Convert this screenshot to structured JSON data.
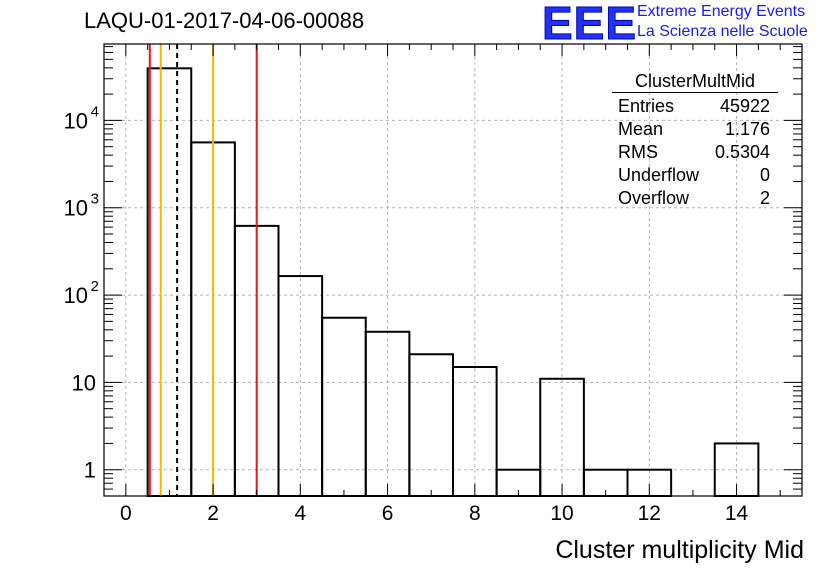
{
  "header": {
    "title": "LAQU-01-2017-04-06-00088",
    "logo_text": "EEE",
    "logo_line1": "Extreme Energy Events",
    "logo_line2": "La Scienza nelle Scuole"
  },
  "stats_box": {
    "name": "ClusterMultMid",
    "rows": [
      {
        "label": "Entries",
        "value": "45922"
      },
      {
        "label": "Mean",
        "value": "1.176"
      },
      {
        "label": "RMS",
        "value": "0.5304"
      },
      {
        "label": "Underflow",
        "value": "0"
      },
      {
        "label": "Overflow",
        "value": "2"
      }
    ]
  },
  "colors": {
    "red_line": "#e8141a",
    "orange_line": "#f5b800",
    "grid": "#b4b4b4",
    "histogram": "#000000",
    "logo": "#2233ee"
  },
  "chart_data": {
    "type": "histogram",
    "title": "LAQU-01-2017-04-06-00088",
    "xlabel": "Cluster multiplicity Mid",
    "ylabel": "",
    "y_scale": "log",
    "xlim": [
      -0.5,
      15.5
    ],
    "ylim": [
      0.5,
      75000
    ],
    "grid": true,
    "x_ticks": [
      0,
      2,
      4,
      6,
      8,
      10,
      12,
      14
    ],
    "x_tick_labels": [
      "0",
      "2",
      "4",
      "6",
      "8",
      "10",
      "12",
      "14"
    ],
    "y_ticks": [
      1,
      10,
      100,
      1000,
      10000
    ],
    "y_tick_labels": [
      {
        "base": "1",
        "exp": ""
      },
      {
        "base": "10",
        "exp": ""
      },
      {
        "base": "10",
        "exp": "2"
      },
      {
        "base": "10",
        "exp": "3"
      },
      {
        "base": "10",
        "exp": "4"
      }
    ],
    "bins": [
      {
        "low": 0.5,
        "high": 1.5,
        "count": 39500
      },
      {
        "low": 1.5,
        "high": 2.5,
        "count": 5600
      },
      {
        "low": 2.5,
        "high": 3.5,
        "count": 620
      },
      {
        "low": 3.5,
        "high": 4.5,
        "count": 165
      },
      {
        "low": 4.5,
        "high": 5.5,
        "count": 55
      },
      {
        "low": 5.5,
        "high": 6.5,
        "count": 38
      },
      {
        "low": 6.5,
        "high": 7.5,
        "count": 21
      },
      {
        "low": 7.5,
        "high": 8.5,
        "count": 15
      },
      {
        "low": 8.5,
        "high": 9.5,
        "count": 1
      },
      {
        "low": 9.5,
        "high": 10.5,
        "count": 11
      },
      {
        "low": 10.5,
        "high": 11.5,
        "count": 1
      },
      {
        "low": 11.5,
        "high": 12.5,
        "count": 1
      },
      {
        "low": 12.5,
        "high": 13.5,
        "count": 0
      },
      {
        "low": 13.5,
        "high": 14.5,
        "count": 2
      }
    ],
    "vertical_lines": [
      {
        "x": 0.55,
        "style": "solid",
        "color": "red"
      },
      {
        "x": 0.8,
        "style": "solid",
        "color": "orange"
      },
      {
        "x": 1.176,
        "style": "dashed",
        "color": "black"
      },
      {
        "x": 2.0,
        "style": "solid",
        "color": "orange"
      },
      {
        "x": 3.0,
        "style": "solid",
        "color": "red"
      }
    ]
  },
  "xaxis_label": "Cluster multiplicity Mid"
}
